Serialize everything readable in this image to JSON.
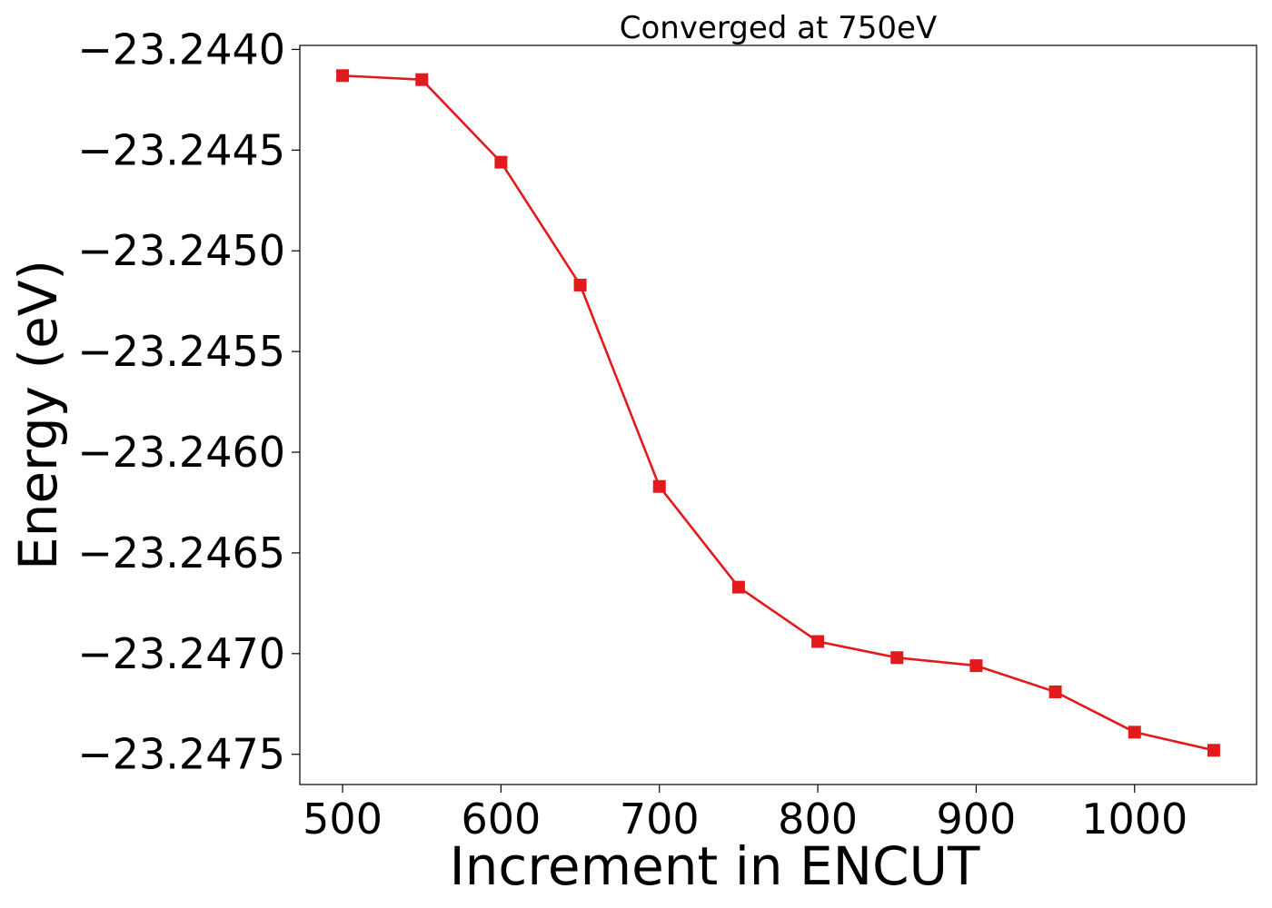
{
  "chart_data": {
    "type": "line",
    "title": "Converged at 750eV",
    "xlabel": "Increment in ENCUT",
    "ylabel": "Energy (eV)",
    "xlim": [
      473,
      1077
    ],
    "ylim": [
      -23.24765,
      -23.24398
    ],
    "xticks": [
      500,
      600,
      700,
      800,
      900,
      1000
    ],
    "xtick_labels": [
      "500",
      "600",
      "700",
      "800",
      "900",
      "1000"
    ],
    "yticks": [
      -23.244,
      -23.2445,
      -23.245,
      -23.2455,
      -23.246,
      -23.2465,
      -23.247,
      -23.2475
    ],
    "ytick_labels": [
      "−23.2440",
      "−23.2445",
      "−23.2450",
      "−23.2455",
      "−23.2460",
      "−23.2465",
      "−23.2470",
      "−23.2475"
    ],
    "grid": false,
    "series": [
      {
        "color": "#e31a1c",
        "marker": "square",
        "x": [
          500,
          550,
          600,
          650,
          700,
          750,
          800,
          850,
          900,
          950,
          1000,
          1050
        ],
        "y": [
          -23.24413,
          -23.24415,
          -23.24456,
          -23.24517,
          -23.24617,
          -23.24667,
          -23.24694,
          -23.24702,
          -23.24706,
          -23.24719,
          -23.24739,
          -23.24748
        ]
      }
    ]
  }
}
